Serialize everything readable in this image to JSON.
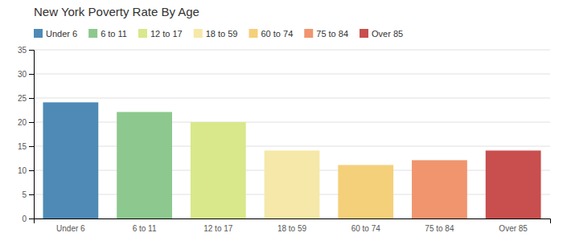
{
  "chart_data": {
    "type": "bar",
    "title": "New York Poverty Rate By Age",
    "categories": [
      "Under 6",
      "6 to 11",
      "12 to 17",
      "18 to 59",
      "60 to 74",
      "75 to 84",
      "Over 85"
    ],
    "values": [
      24.1,
      22.1,
      20.0,
      14.1,
      11.1,
      12.1,
      14.1
    ],
    "colors": [
      "#4e8ab5",
      "#8dc88e",
      "#d8e88a",
      "#f5e8a8",
      "#f5d07a",
      "#f0956e",
      "#c94e4e"
    ],
    "ylim": [
      0,
      35
    ],
    "yticks": [
      0,
      5,
      10,
      15,
      20,
      25,
      30,
      35
    ],
    "grid": true,
    "legend": "top"
  }
}
